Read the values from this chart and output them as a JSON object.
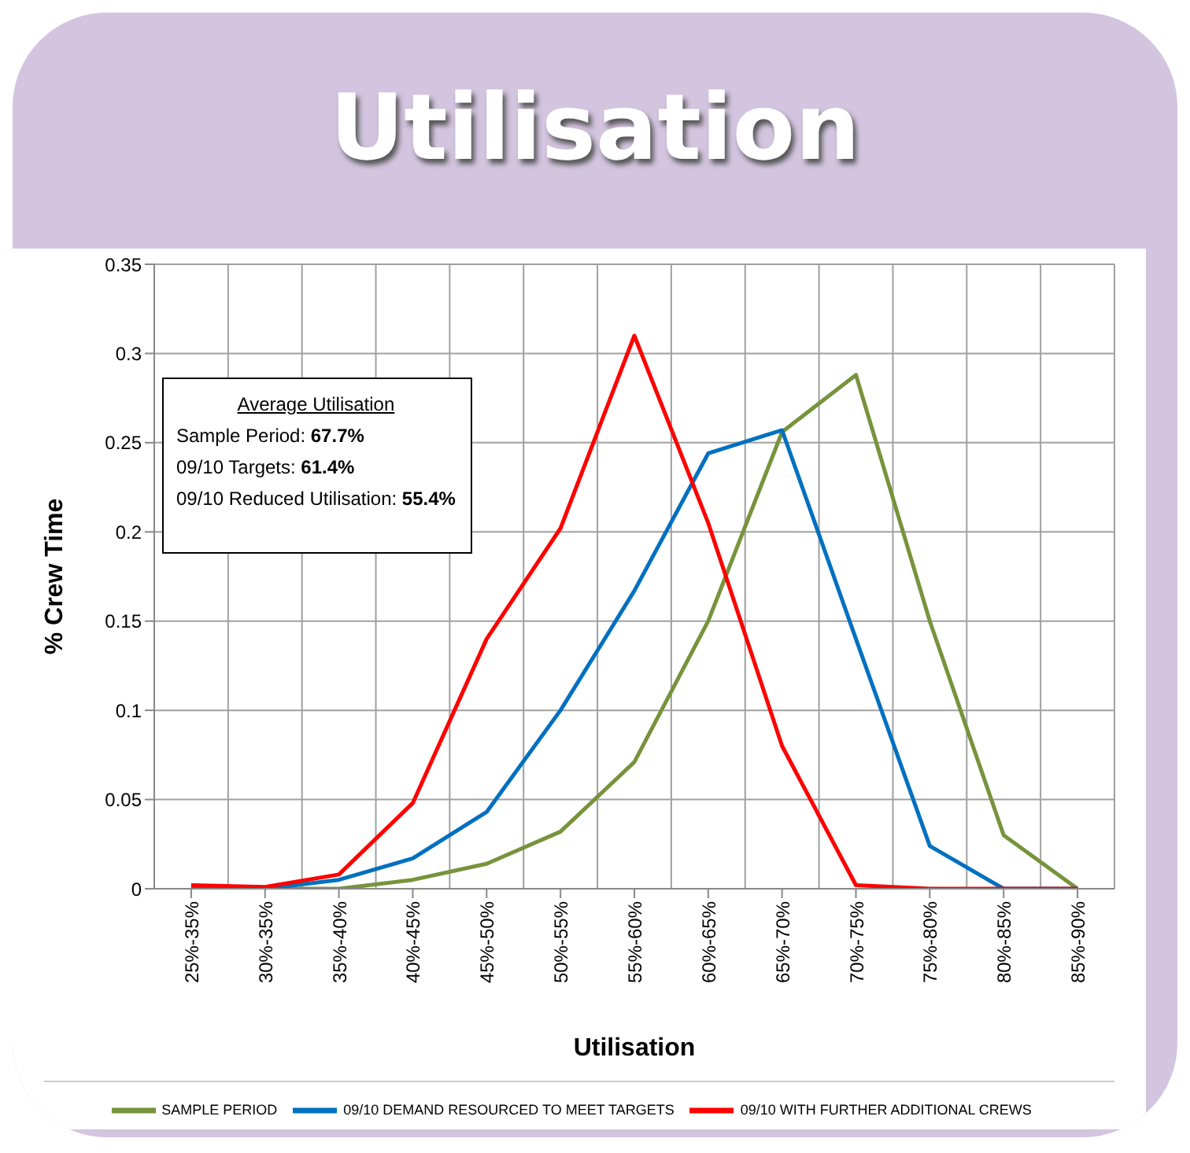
{
  "chart_data": {
    "type": "line",
    "title": "Utilisation",
    "xlabel": "Utilisation",
    "ylabel": "% Crew Time",
    "categories": [
      "25%-35%",
      "30%-35%",
      "35%-40%",
      "40%-45%",
      "45%-50%",
      "50%-55%",
      "55%-60%",
      "60%-65%",
      "65%-70%",
      "70%-75%",
      "75%-80%",
      "80%-85%",
      "85%-90%"
    ],
    "series": [
      {
        "name": "SAMPLE PERIOD",
        "color": "#77933c",
        "values": [
          0,
          0,
          0,
          0.005,
          0.014,
          0.032,
          0.071,
          0.15,
          0.256,
          0.288,
          0.15,
          0.03,
          0
        ]
      },
      {
        "name": "09/10 DEMAND RESOURCED TO MEET TARGETS",
        "color": "#0070c0",
        "values": [
          0.001,
          0,
          0.005,
          0.017,
          0.043,
          0.1,
          0.167,
          0.244,
          0.257,
          0.14,
          0.024,
          0,
          0
        ]
      },
      {
        "name": "09/10 WITH FURTHER ADDITIONAL CREWS",
        "color": "#ff0000",
        "values": [
          0.002,
          0.001,
          0.008,
          0.048,
          0.14,
          0.202,
          0.31,
          0.205,
          0.08,
          0.002,
          0,
          0,
          0
        ]
      }
    ],
    "ylim": [
      0,
      0.35
    ],
    "yticks": [
      0,
      0.05,
      0.1,
      0.15,
      0.2,
      0.25,
      0.3,
      0.35
    ],
    "grid": true,
    "legend": "bottom",
    "marker": "none",
    "annotations": [
      "Average Utilisation",
      "Sample Period: 67.7%",
      "09/10 Targets: 61.4%",
      "09/10 Reduced Utilisation: 55.4%"
    ]
  }
}
